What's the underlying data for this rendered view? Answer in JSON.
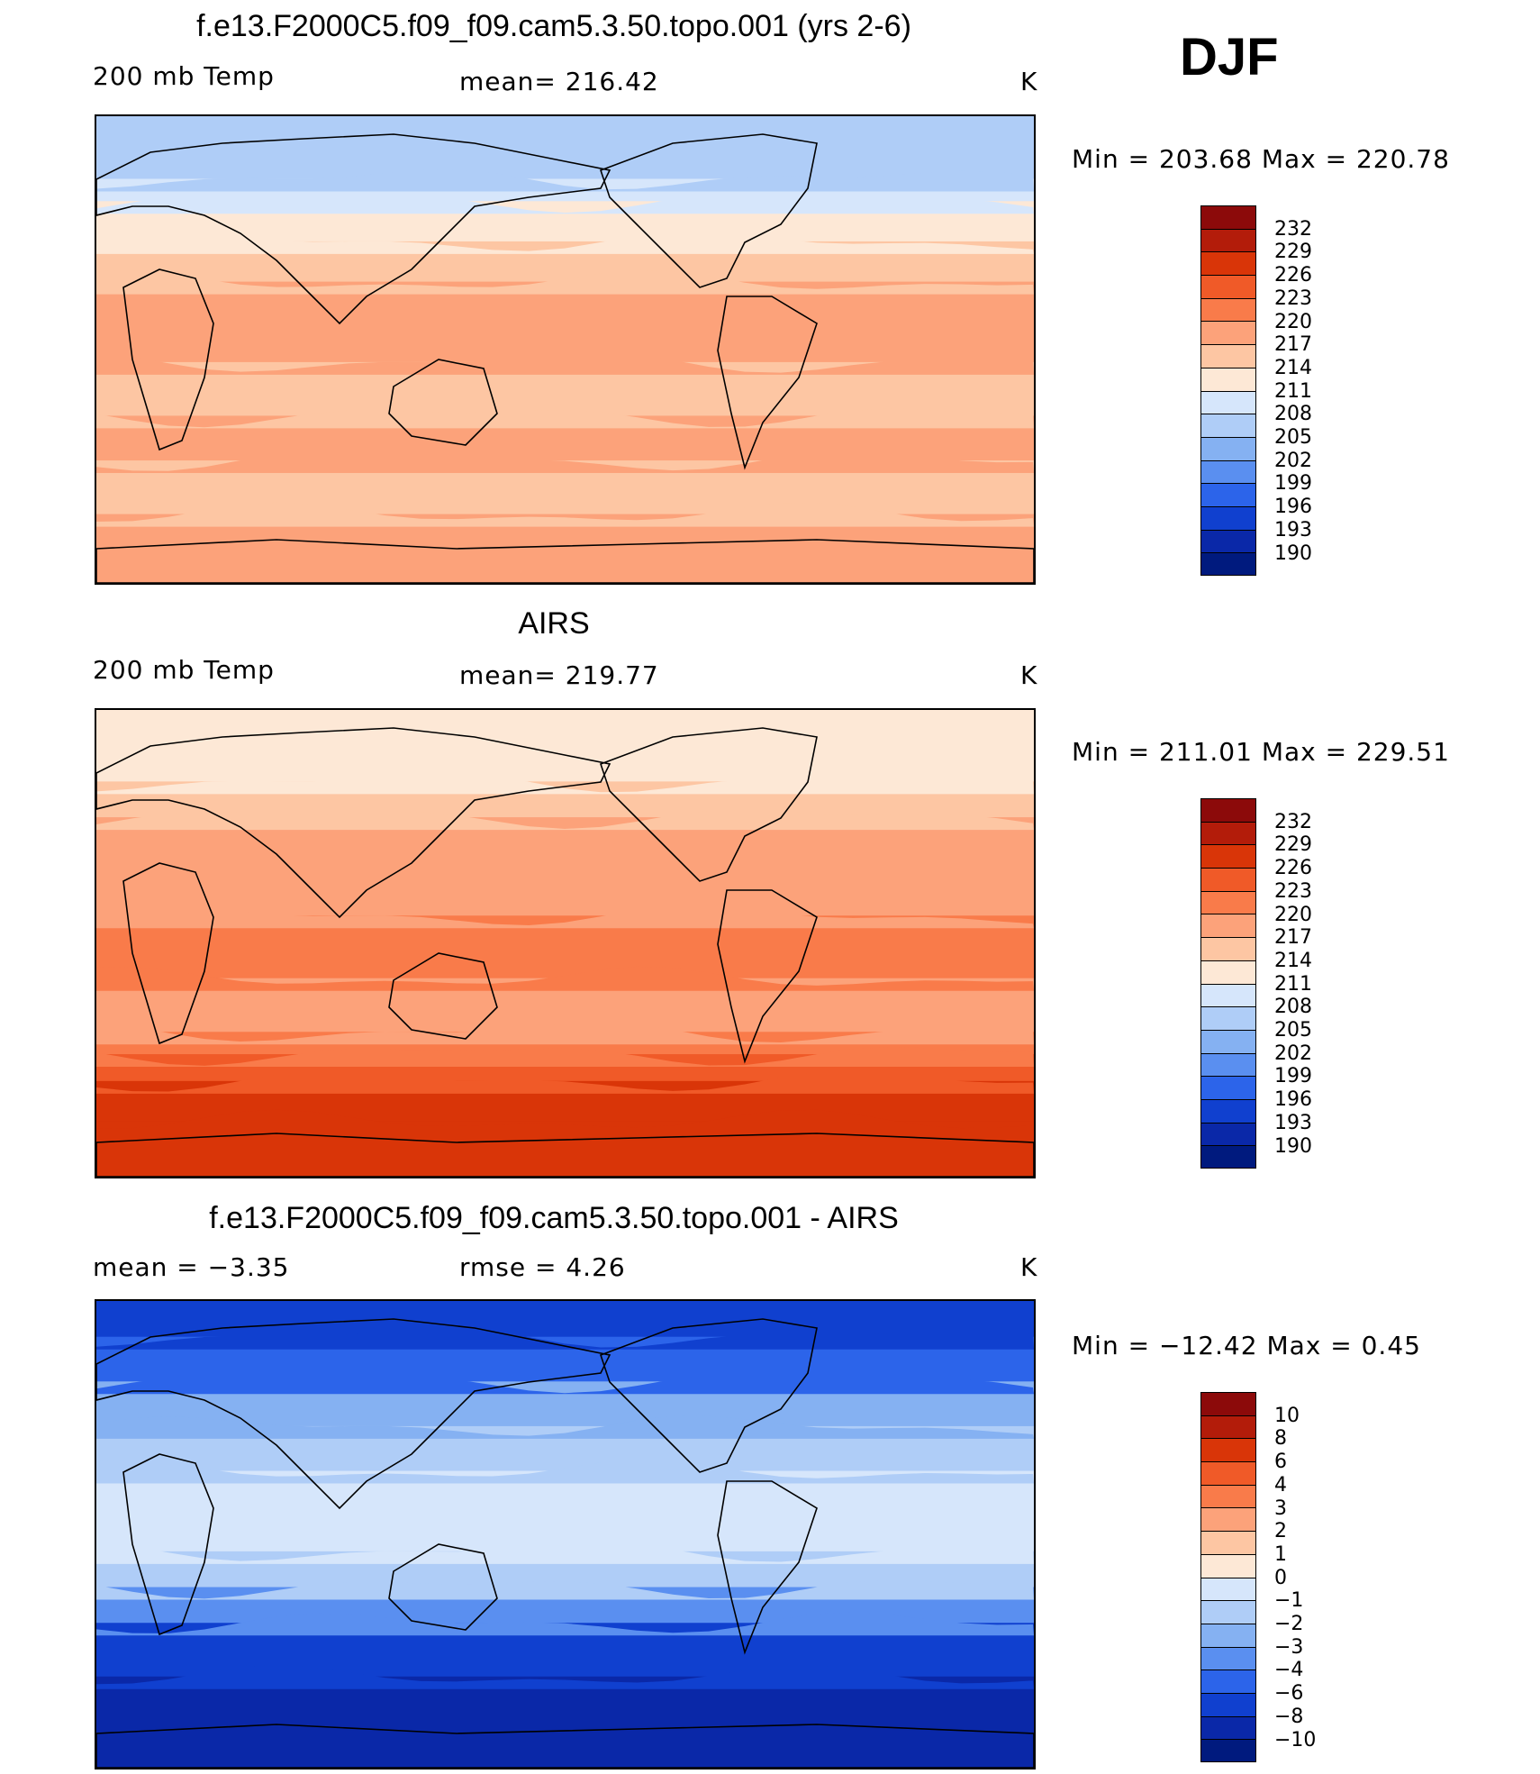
{
  "season": "DJF",
  "panels": [
    {
      "title": "f.e13.F2000C5.f09_f09.cam5.3.50.topo.001 (yrs 2-6)",
      "left_label": "200 mb Temp",
      "center_label": "mean= 216.42",
      "units": "K",
      "minmax": "Min = 203.68 Max = 220.78",
      "colorbar_labels": [
        "232",
        "229",
        "226",
        "223",
        "220",
        "217",
        "214",
        "211",
        "208",
        "205",
        "202",
        "199",
        "196",
        "193",
        "190"
      ],
      "colorbar_colors": [
        "#8c0a0a",
        "#b31c0a",
        "#d93508",
        "#f05a28",
        "#f97b4a",
        "#fca27a",
        "#fdc6a3",
        "#fde8d6",
        "#d6e6fb",
        "#afcdf7",
        "#85b1f2",
        "#5a8ff0",
        "#2c64ea",
        "#1040cf",
        "#0a28a8",
        "#001a7e"
      ],
      "field": {
        "rows": [
          {
            "y": 0,
            "h": 70,
            "color": "#afcdf7"
          },
          {
            "y": 70,
            "h": 25,
            "color": "#d6e6fb"
          },
          {
            "y": 95,
            "h": 45,
            "color": "#fde8d6"
          },
          {
            "y": 140,
            "h": 45,
            "color": "#fdc6a3"
          },
          {
            "y": 185,
            "h": 90,
            "color": "#fca27a"
          },
          {
            "y": 275,
            "h": 60,
            "color": "#fdc6a3"
          },
          {
            "y": 335,
            "h": 50,
            "color": "#fca27a"
          },
          {
            "y": 385,
            "h": 60,
            "color": "#fdc6a3"
          },
          {
            "y": 445,
            "h": 77,
            "color": "#fca27a"
          }
        ]
      }
    },
    {
      "title": "AIRS",
      "left_label": "200 mb Temp",
      "center_label": "mean= 219.77",
      "units": "K",
      "minmax": "Min = 211.01 Max = 229.51",
      "colorbar_labels": [
        "232",
        "229",
        "226",
        "223",
        "220",
        "217",
        "214",
        "211",
        "208",
        "205",
        "202",
        "199",
        "196",
        "193",
        "190"
      ],
      "colorbar_colors": [
        "#8c0a0a",
        "#b31c0a",
        "#d93508",
        "#f05a28",
        "#f97b4a",
        "#fca27a",
        "#fdc6a3",
        "#fde8d6",
        "#d6e6fb",
        "#afcdf7",
        "#85b1f2",
        "#5a8ff0",
        "#2c64ea",
        "#1040cf",
        "#0a28a8",
        "#001a7e"
      ],
      "field": {
        "rows": [
          {
            "y": 0,
            "h": 80,
            "color": "#fde8d6"
          },
          {
            "y": 80,
            "h": 40,
            "color": "#fdc6a3"
          },
          {
            "y": 120,
            "h": 110,
            "color": "#fca27a"
          },
          {
            "y": 230,
            "h": 70,
            "color": "#f97b4a"
          },
          {
            "y": 300,
            "h": 60,
            "color": "#fca27a"
          },
          {
            "y": 360,
            "h": 25,
            "color": "#f97b4a"
          },
          {
            "y": 385,
            "h": 30,
            "color": "#f05a28"
          },
          {
            "y": 415,
            "h": 45,
            "color": "#d93508"
          },
          {
            "y": 460,
            "h": 62,
            "color": "#d93508"
          }
        ]
      }
    },
    {
      "title": "f.e13.F2000C5.f09_f09.cam5.3.50.topo.001 - AIRS",
      "left_label": "mean =   −3.35",
      "center_label": "rmse =    4.26",
      "units": "K",
      "minmax": "Min = −12.42 Max =    0.45",
      "colorbar_labels": [
        "10",
        "8",
        "6",
        "4",
        "3",
        "2",
        "1",
        "0",
        "−1",
        "−2",
        "−3",
        "−4",
        "−6",
        "−8",
        "−10"
      ],
      "colorbar_colors": [
        "#8c0a0a",
        "#b31c0a",
        "#d93508",
        "#f05a28",
        "#f97b4a",
        "#fca27a",
        "#fdc6a3",
        "#fde8d6",
        "#d6e6fb",
        "#afcdf7",
        "#85b1f2",
        "#5a8ff0",
        "#2c64ea",
        "#1040cf",
        "#0a28a8",
        "#001a7e"
      ],
      "field": {
        "rows": [
          {
            "y": 0,
            "h": 40,
            "color": "#1040cf"
          },
          {
            "y": 40,
            "h": 50,
            "color": "#2c64ea"
          },
          {
            "y": 90,
            "h": 50,
            "color": "#85b1f2"
          },
          {
            "y": 140,
            "h": 50,
            "color": "#afcdf7"
          },
          {
            "y": 190,
            "h": 90,
            "color": "#d6e6fb"
          },
          {
            "y": 280,
            "h": 40,
            "color": "#afcdf7"
          },
          {
            "y": 320,
            "h": 40,
            "color": "#5a8ff0"
          },
          {
            "y": 360,
            "h": 60,
            "color": "#1040cf"
          },
          {
            "y": 420,
            "h": 102,
            "color": "#0a28a8"
          }
        ]
      }
    }
  ]
}
